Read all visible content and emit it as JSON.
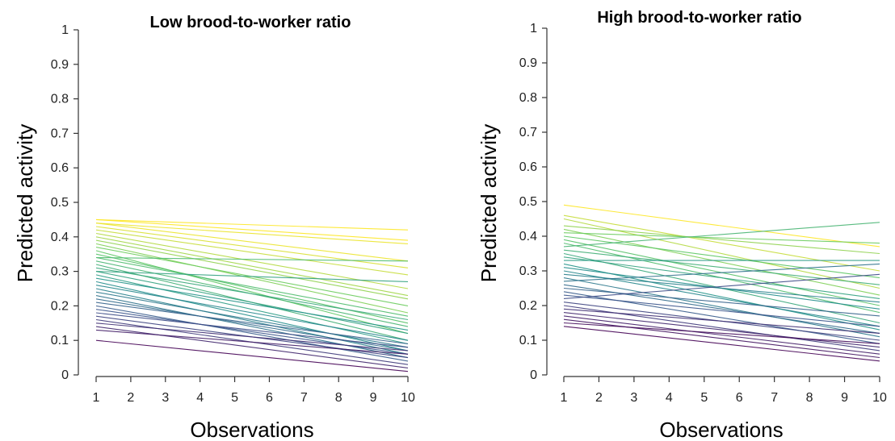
{
  "chart_data": [
    {
      "type": "line",
      "title": "Low brood-to-worker ratio",
      "xlabel": "Observations",
      "ylabel": "Predicted activity",
      "xlim": [
        1,
        10
      ],
      "ylim": [
        0,
        1
      ],
      "xticks": [
        "1",
        "2",
        "3",
        "4",
        "5",
        "6",
        "7",
        "8",
        "9",
        "10"
      ],
      "yticks": [
        "0",
        "0.1",
        "0.2",
        "0.3",
        "0.4",
        "0.5",
        "0.6",
        "0.7",
        "0.8",
        "0.9",
        "1"
      ],
      "grid": false,
      "colormap": "viridis (purple #440154 → teal #21918c → yellow #fde725)",
      "series": [
        {
          "x": [
            1,
            10
          ],
          "y": [
            0.45,
            0.42
          ]
        },
        {
          "x": [
            1,
            10
          ],
          "y": [
            0.45,
            0.39
          ]
        },
        {
          "x": [
            1,
            10
          ],
          "y": [
            0.44,
            0.38
          ]
        },
        {
          "x": [
            1,
            10
          ],
          "y": [
            0.44,
            0.33
          ]
        },
        {
          "x": [
            1,
            10
          ],
          "y": [
            0.43,
            0.31
          ]
        },
        {
          "x": [
            1,
            10
          ],
          "y": [
            0.42,
            0.29
          ]
        },
        {
          "x": [
            1,
            10
          ],
          "y": [
            0.41,
            0.25
          ]
        },
        {
          "x": [
            1,
            10
          ],
          "y": [
            0.4,
            0.23
          ]
        },
        {
          "x": [
            1,
            10
          ],
          "y": [
            0.39,
            0.22
          ]
        },
        {
          "x": [
            1,
            10
          ],
          "y": [
            0.38,
            0.18
          ]
        },
        {
          "x": [
            1,
            10
          ],
          "y": [
            0.37,
            0.2
          ]
        },
        {
          "x": [
            1,
            10
          ],
          "y": [
            0.36,
            0.12
          ]
        },
        {
          "x": [
            1,
            10
          ],
          "y": [
            0.35,
            0.15
          ]
        },
        {
          "x": [
            1,
            10
          ],
          "y": [
            0.34,
            0.33
          ]
        },
        {
          "x": [
            1,
            10
          ],
          "y": [
            0.34,
            0.17
          ]
        },
        {
          "x": [
            1,
            10
          ],
          "y": [
            0.33,
            0.14
          ]
        },
        {
          "x": [
            1,
            10
          ],
          "y": [
            0.32,
            0.1
          ]
        },
        {
          "x": [
            1,
            10
          ],
          "y": [
            0.31,
            0.16
          ]
        },
        {
          "x": [
            1,
            10
          ],
          "y": [
            0.3,
            0.12
          ]
        },
        {
          "x": [
            1,
            10
          ],
          "y": [
            0.3,
            0.27
          ]
        },
        {
          "x": [
            1,
            10
          ],
          "y": [
            0.29,
            0.09
          ]
        },
        {
          "x": [
            1,
            10
          ],
          "y": [
            0.28,
            0.13
          ]
        },
        {
          "x": [
            1,
            10
          ],
          "y": [
            0.27,
            0.07
          ]
        },
        {
          "x": [
            1,
            10
          ],
          "y": [
            0.26,
            0.1
          ]
        },
        {
          "x": [
            1,
            10
          ],
          "y": [
            0.25,
            0.06
          ]
        },
        {
          "x": [
            1,
            10
          ],
          "y": [
            0.24,
            0.08
          ]
        },
        {
          "x": [
            1,
            10
          ],
          "y": [
            0.23,
            0.05
          ]
        },
        {
          "x": [
            1,
            10
          ],
          "y": [
            0.22,
            0.07
          ]
        },
        {
          "x": [
            1,
            10
          ],
          "y": [
            0.21,
            0.09
          ]
        },
        {
          "x": [
            1,
            10
          ],
          "y": [
            0.2,
            0.04
          ]
        },
        {
          "x": [
            1,
            10
          ],
          "y": [
            0.19,
            0.06
          ]
        },
        {
          "x": [
            1,
            10
          ],
          "y": [
            0.18,
            0.08
          ]
        },
        {
          "x": [
            1,
            10
          ],
          "y": [
            0.17,
            0.05
          ]
        },
        {
          "x": [
            1,
            10
          ],
          "y": [
            0.16,
            0.03
          ]
        },
        {
          "x": [
            1,
            10
          ],
          "y": [
            0.15,
            0.07
          ]
        },
        {
          "x": [
            1,
            10
          ],
          "y": [
            0.14,
            0.02
          ]
        },
        {
          "x": [
            1,
            10
          ],
          "y": [
            0.13,
            0.06
          ]
        },
        {
          "x": [
            1,
            10
          ],
          "y": [
            0.1,
            0.01
          ]
        }
      ]
    },
    {
      "type": "line",
      "title": "High brood-to-worker ratio",
      "xlabel": "Observations",
      "ylabel": "Predicted activity",
      "xlim": [
        1,
        10
      ],
      "ylim": [
        0,
        1
      ],
      "xticks": [
        "1",
        "2",
        "3",
        "4",
        "5",
        "6",
        "7",
        "8",
        "9",
        "10"
      ],
      "yticks": [
        "0",
        "0.1",
        "0.2",
        "0.3",
        "0.4",
        "0.5",
        "0.6",
        "0.7",
        "0.8",
        "0.9",
        "1"
      ],
      "grid": false,
      "colormap": "viridis (purple #440154 → teal #21918c → yellow #fde725)",
      "series": [
        {
          "x": [
            1,
            10
          ],
          "y": [
            0.49,
            0.37
          ]
        },
        {
          "x": [
            1,
            10
          ],
          "y": [
            0.46,
            0.3
          ]
        },
        {
          "x": [
            1,
            10
          ],
          "y": [
            0.45,
            0.25
          ]
        },
        {
          "x": [
            1,
            10
          ],
          "y": [
            0.43,
            0.35
          ]
        },
        {
          "x": [
            1,
            10
          ],
          "y": [
            0.42,
            0.23
          ]
        },
        {
          "x": [
            1,
            10
          ],
          "y": [
            0.41,
            0.38
          ]
        },
        {
          "x": [
            1,
            10
          ],
          "y": [
            0.4,
            0.28
          ]
        },
        {
          "x": [
            1,
            10
          ],
          "y": [
            0.39,
            0.2
          ]
        },
        {
          "x": [
            1,
            10
          ],
          "y": [
            0.38,
            0.18
          ]
        },
        {
          "x": [
            1,
            10
          ],
          "y": [
            0.37,
            0.44
          ]
        },
        {
          "x": [
            1,
            10
          ],
          "y": [
            0.36,
            0.26
          ]
        },
        {
          "x": [
            1,
            10
          ],
          "y": [
            0.35,
            0.15
          ]
        },
        {
          "x": [
            1,
            10
          ],
          "y": [
            0.34,
            0.22
          ]
        },
        {
          "x": [
            1,
            10
          ],
          "y": [
            0.33,
            0.33
          ]
        },
        {
          "x": [
            1,
            10
          ],
          "y": [
            0.32,
            0.13
          ]
        },
        {
          "x": [
            1,
            10
          ],
          "y": [
            0.31,
            0.19
          ]
        },
        {
          "x": [
            1,
            10
          ],
          "y": [
            0.3,
            0.14
          ]
        },
        {
          "x": [
            1,
            10
          ],
          "y": [
            0.29,
            0.21
          ]
        },
        {
          "x": [
            1,
            10
          ],
          "y": [
            0.28,
            0.11
          ]
        },
        {
          "x": [
            1,
            10
          ],
          "y": [
            0.27,
            0.32
          ]
        },
        {
          "x": [
            1,
            10
          ],
          "y": [
            0.26,
            0.12
          ]
        },
        {
          "x": [
            1,
            10
          ],
          "y": [
            0.25,
            0.17
          ]
        },
        {
          "x": [
            1,
            10
          ],
          "y": [
            0.24,
            0.09
          ]
        },
        {
          "x": [
            1,
            10
          ],
          "y": [
            0.23,
            0.14
          ]
        },
        {
          "x": [
            1,
            10
          ],
          "y": [
            0.22,
            0.29
          ]
        },
        {
          "x": [
            1,
            10
          ],
          "y": [
            0.21,
            0.1
          ]
        },
        {
          "x": [
            1,
            10
          ],
          "y": [
            0.2,
            0.07
          ]
        },
        {
          "x": [
            1,
            10
          ],
          "y": [
            0.19,
            0.12
          ]
        },
        {
          "x": [
            1,
            10
          ],
          "y": [
            0.18,
            0.08
          ]
        },
        {
          "x": [
            1,
            10
          ],
          "y": [
            0.17,
            0.06
          ]
        },
        {
          "x": [
            1,
            10
          ],
          "y": [
            0.16,
            0.05
          ]
        },
        {
          "x": [
            1,
            10
          ],
          "y": [
            0.15,
            0.09
          ]
        },
        {
          "x": [
            1,
            10
          ],
          "y": [
            0.14,
            0.04
          ]
        }
      ]
    }
  ]
}
